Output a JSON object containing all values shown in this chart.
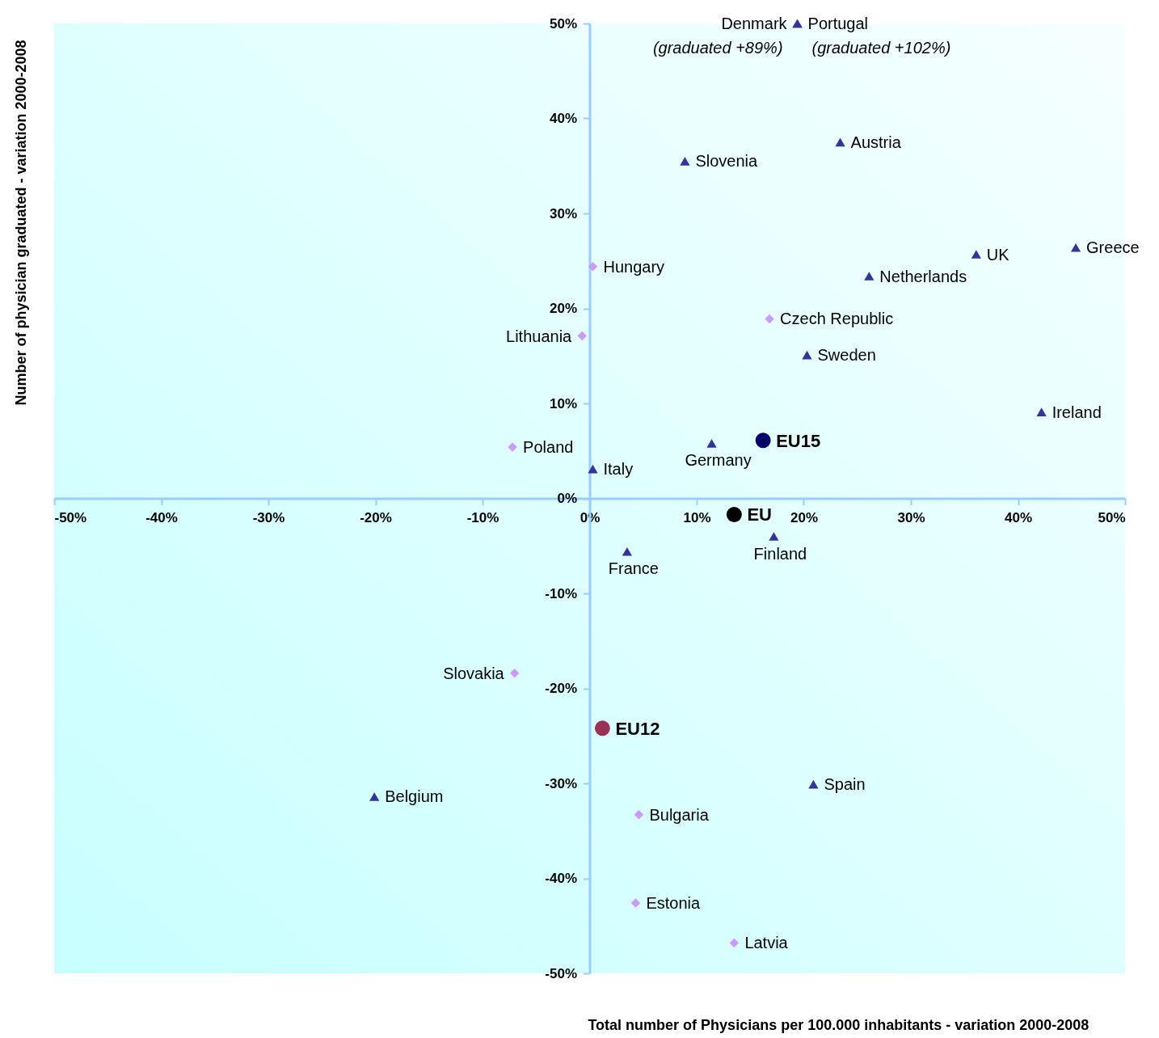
{
  "chart_data": {
    "type": "scatter",
    "xlabel": "Total number of Physicians per 100.000 inhabitants - variation 2000-2008",
    "ylabel": "Number of physician graduated - variation 2000-2008",
    "xlim": [
      -50,
      50
    ],
    "ylim": [
      -50,
      50
    ],
    "xticks": [
      {
        "value": -50,
        "label": "-50%"
      },
      {
        "value": -40,
        "label": "-40%"
      },
      {
        "value": -30,
        "label": "-30%"
      },
      {
        "value": -20,
        "label": "-20%"
      },
      {
        "value": -10,
        "label": "-10%"
      },
      {
        "value": 0,
        "label": "0%"
      },
      {
        "value": 10,
        "label": "10%"
      },
      {
        "value": 20,
        "label": "20%"
      },
      {
        "value": 30,
        "label": "30%"
      },
      {
        "value": 40,
        "label": "40%"
      },
      {
        "value": 50,
        "label": "50%"
      }
    ],
    "yticks": [
      {
        "value": -50,
        "label": "-50%"
      },
      {
        "value": -40,
        "label": "-40%"
      },
      {
        "value": -30,
        "label": "-30%"
      },
      {
        "value": -20,
        "label": "-20%"
      },
      {
        "value": -10,
        "label": "-10%"
      },
      {
        "value": 0,
        "label": "0%"
      },
      {
        "value": 10,
        "label": "10%"
      },
      {
        "value": 20,
        "label": "20%"
      },
      {
        "value": 30,
        "label": "30%"
      },
      {
        "value": 40,
        "label": "40%"
      },
      {
        "value": 50,
        "label": "50%"
      }
    ],
    "grid": false,
    "series": [
      {
        "color": "#333399",
        "marker": "triangle",
        "x": [
          19.4,
          19.4,
          23.4,
          8.9,
          45.4,
          36.1,
          26.1,
          20.3,
          42.2,
          11.4,
          0.3,
          17.2,
          3.5,
          20.9,
          -20.1
        ],
        "values": [
          50,
          50,
          37.5,
          35.5,
          26.4,
          25.7,
          23.4,
          15.1,
          9.1,
          5.8,
          3.1,
          -4.0,
          -5.6,
          -30.1,
          -31.4
        ],
        "value_labels": [
          "Denmark",
          "Portugal",
          "Austria",
          "Slovenia",
          "Greece",
          "UK",
          "Netherlands",
          "Sweden",
          "Ireland",
          "Germany",
          "Italy",
          "Finland",
          "France",
          "Spain",
          "Belgium"
        ]
      },
      {
        "color": "#cc99ff",
        "marker": "diamond",
        "x": [
          0.3,
          16.8,
          -0.7,
          -7.2,
          -7.0,
          4.6,
          4.3,
          13.5
        ],
        "values": [
          24.4,
          18.9,
          17.1,
          5.4,
          -18.4,
          -33.3,
          -42.6,
          -46.8
        ],
        "value_labels": [
          "Hungary",
          "Czech Republic",
          "Lithuania",
          "Poland",
          "Slovakia",
          "Bulgaria",
          "Estonia",
          "Latvia"
        ]
      },
      {
        "color": "#000066",
        "marker": "circle",
        "x": [
          16.2
        ],
        "values": [
          6.1
        ],
        "value_labels": [
          "EU15"
        ]
      },
      {
        "color": "#000000",
        "marker": "circle",
        "x": [
          13.5
        ],
        "values": [
          -1.7
        ],
        "value_labels": [
          "EU"
        ]
      },
      {
        "color": "#993355",
        "marker": "circle",
        "x": [
          1.2
        ],
        "values": [
          -24.2
        ],
        "value_labels": [
          "EU12"
        ]
      }
    ],
    "annotations": [
      {
        "text": "(graduated +89%)",
        "x": 19.4,
        "y": 50
      },
      {
        "text": "(graduated +102%)",
        "x": 19.4,
        "y": 50
      }
    ]
  }
}
